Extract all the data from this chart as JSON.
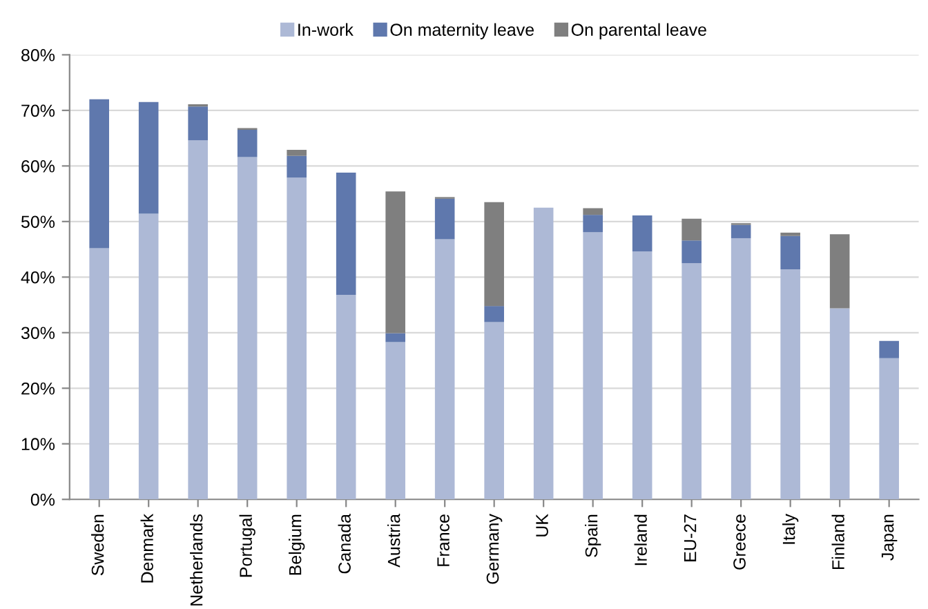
{
  "chart_data": {
    "type": "bar",
    "stacked": true,
    "legend": "top",
    "grid": "y",
    "categories": [
      "Sweden",
      "Denmark",
      "Netherlands",
      "Portugal",
      "Belgium",
      "Canada",
      "Austria",
      "France",
      "Germany",
      "UK",
      "Spain",
      "Ireland",
      "EU-27",
      "Greece",
      "Italy",
      "Finland",
      "Japan"
    ],
    "series": [
      {
        "name": "In-work",
        "color": "#adb9d6",
        "values": [
          45.2,
          51.4,
          64.6,
          61.6,
          57.9,
          36.8,
          28.3,
          46.8,
          31.9,
          52.5,
          48.1,
          44.6,
          42.5,
          47.0,
          41.4,
          34.4,
          25.4
        ]
      },
      {
        "name": "On maternity leave",
        "color": "#5f78ad",
        "values": [
          26.8,
          20.1,
          6.1,
          4.9,
          3.9,
          22.0,
          1.6,
          7.3,
          2.9,
          0,
          3.1,
          6.5,
          4.1,
          2.4,
          6.0,
          0,
          3.1
        ]
      },
      {
        "name": "On parental leave",
        "color": "#7f7f7f",
        "values": [
          0,
          0,
          0.4,
          0.3,
          1.1,
          0,
          25.5,
          0.3,
          18.7,
          0,
          1.2,
          0,
          3.9,
          0.3,
          0.6,
          13.3,
          0
        ]
      }
    ],
    "ylim": [
      0,
      80
    ],
    "yticks": [
      {
        "value": 0,
        "label": "0%"
      },
      {
        "value": 10,
        "label": "10%"
      },
      {
        "value": 20,
        "label": "20%"
      },
      {
        "value": 30,
        "label": "30%"
      },
      {
        "value": 40,
        "label": "40%"
      },
      {
        "value": 50,
        "label": "50%"
      },
      {
        "value": 60,
        "label": "60%"
      },
      {
        "value": 70,
        "label": "70%"
      },
      {
        "value": 80,
        "label": "80%"
      }
    ]
  }
}
